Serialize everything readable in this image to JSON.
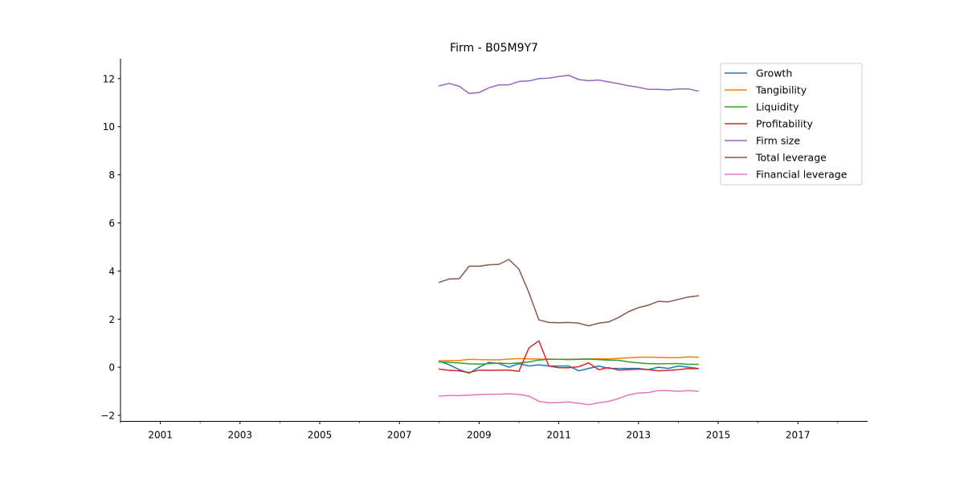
{
  "chart_data": {
    "type": "line",
    "title": "Firm - B05M9Y7",
    "xlabel": "",
    "ylabel": "",
    "xlim": [
      2000.0,
      2018.75
    ],
    "ylim": [
      -2.25,
      12.83
    ],
    "xticks": [
      2001,
      2003,
      2005,
      2007,
      2009,
      2011,
      2013,
      2015,
      2017
    ],
    "xtick_labels": [
      "2001",
      "2003",
      "2005",
      "2007",
      "2009",
      "2011",
      "2013",
      "2015",
      "2017"
    ],
    "yticks": [
      -2,
      0,
      2,
      4,
      6,
      8,
      10,
      12
    ],
    "ytick_labels": [
      "−2",
      "0",
      "2",
      "4",
      "6",
      "8",
      "10",
      "12"
    ],
    "legend_position": "top-right",
    "x": [
      2008.0,
      2008.25,
      2008.5,
      2008.75,
      2009.0,
      2009.25,
      2009.5,
      2009.75,
      2010.0,
      2010.25,
      2010.5,
      2010.75,
      2011.0,
      2011.25,
      2011.5,
      2011.75,
      2012.0,
      2012.25,
      2012.5,
      2012.75,
      2013.0,
      2013.25,
      2013.5,
      2013.75,
      2014.0,
      2014.25,
      2014.5
    ],
    "series": [
      {
        "name": "Growth",
        "color": "#1f77b4",
        "values": [
          0.25,
          0.1,
          -0.1,
          -0.25,
          0.0,
          0.2,
          0.15,
          0.0,
          0.15,
          0.05,
          0.1,
          0.05,
          0.05,
          0.05,
          -0.15,
          -0.05,
          0.05,
          -0.05,
          -0.05,
          -0.05,
          -0.05,
          -0.1,
          0.0,
          -0.05,
          0.05,
          0.0,
          -0.05
        ]
      },
      {
        "name": "Tangibility",
        "color": "#ff7f0e",
        "values": [
          0.27,
          0.28,
          0.28,
          0.33,
          0.32,
          0.31,
          0.31,
          0.34,
          0.36,
          0.35,
          0.34,
          0.34,
          0.33,
          0.33,
          0.34,
          0.35,
          0.35,
          0.35,
          0.37,
          0.39,
          0.42,
          0.42,
          0.41,
          0.4,
          0.4,
          0.43,
          0.42
        ]
      },
      {
        "name": "Liquidity",
        "color": "#2ca02c",
        "values": [
          0.22,
          0.2,
          0.18,
          0.14,
          0.13,
          0.15,
          0.17,
          0.15,
          0.18,
          0.22,
          0.3,
          0.33,
          0.33,
          0.32,
          0.33,
          0.34,
          0.32,
          0.3,
          0.29,
          0.22,
          0.18,
          0.15,
          0.14,
          0.15,
          0.15,
          0.12,
          0.12
        ]
      },
      {
        "name": "Profitability",
        "color": "#d62728",
        "values": [
          -0.08,
          -0.13,
          -0.15,
          -0.22,
          -0.12,
          -0.13,
          -0.12,
          -0.12,
          -0.17,
          0.8,
          1.1,
          0.05,
          -0.02,
          -0.02,
          0.02,
          0.18,
          -0.1,
          -0.02,
          -0.12,
          -0.1,
          -0.08,
          -0.1,
          -0.15,
          -0.13,
          -0.1,
          -0.06,
          -0.06
        ]
      },
      {
        "name": "Firm size",
        "color": "#9467bd",
        "values": [
          11.7,
          11.8,
          11.68,
          11.38,
          11.42,
          11.62,
          11.74,
          11.74,
          11.88,
          11.9,
          12.0,
          12.02,
          12.09,
          12.14,
          11.96,
          11.91,
          11.94,
          11.86,
          11.79,
          11.7,
          11.64,
          11.55,
          11.55,
          11.53,
          11.57,
          11.57,
          11.48
        ]
      },
      {
        "name": "Total leverage",
        "color": "#8c564b",
        "values": [
          3.53,
          3.67,
          3.68,
          4.2,
          4.2,
          4.26,
          4.28,
          4.48,
          4.08,
          3.1,
          1.97,
          1.86,
          1.85,
          1.86,
          1.83,
          1.72,
          1.83,
          1.88,
          2.07,
          2.31,
          2.48,
          2.58,
          2.74,
          2.72,
          2.82,
          2.92,
          2.97
        ]
      },
      {
        "name": "Financial leverage",
        "color": "#e377c2",
        "values": [
          -1.2,
          -1.17,
          -1.18,
          -1.16,
          -1.14,
          -1.12,
          -1.12,
          -1.1,
          -1.13,
          -1.2,
          -1.42,
          -1.48,
          -1.47,
          -1.44,
          -1.5,
          -1.56,
          -1.48,
          -1.42,
          -1.3,
          -1.15,
          -1.07,
          -1.05,
          -0.97,
          -0.97,
          -1.0,
          -0.97,
          -1.0
        ]
      }
    ]
  }
}
